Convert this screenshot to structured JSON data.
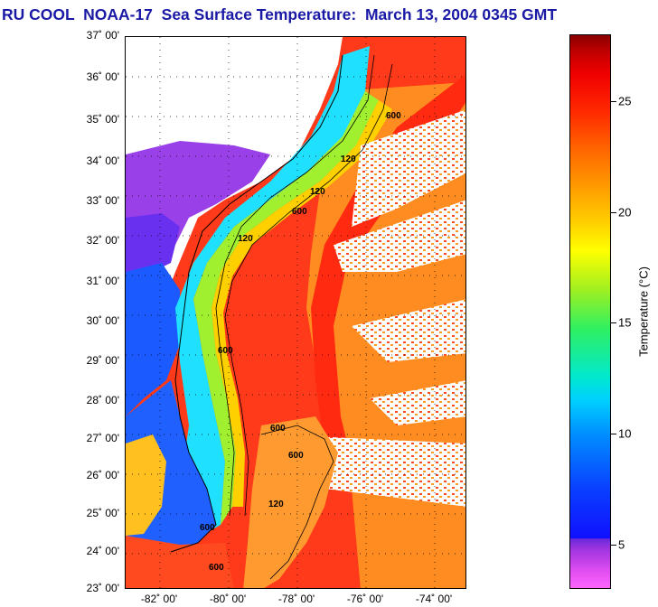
{
  "title": "RU COOL  NOAA-17  Sea Surface Temperature:  March 13, 2004 0345 GMT",
  "colorbar": {
    "label": "Temperature (°C)",
    "ticks": [
      "5",
      "10",
      "15",
      "20",
      "25"
    ],
    "tick_values": [
      5,
      10,
      15,
      20,
      25
    ],
    "range": [
      3,
      28
    ],
    "colors": {
      "min": "#ff66ff",
      "cold": "#1010ff",
      "mid": "#ffff00",
      "warm": "#ff2a00",
      "max": "#8a0000"
    }
  },
  "map": {
    "lat_labels": [
      "37˚ 00'",
      "36˚ 00'",
      "35˚ 00'",
      "34˚ 00'",
      "33˚ 00'",
      "32˚ 00'",
      "31˚ 00'",
      "30˚ 00'",
      "29˚ 00'",
      "28˚ 00'",
      "27˚ 00'",
      "26˚ 00'",
      "25˚ 00'",
      "24˚ 00'",
      "23˚ 00'"
    ],
    "lon_labels": [
      "-82˚ 00'",
      "-80˚ 00'",
      "-78˚ 00'",
      "-76˚ 00'",
      "-74˚ 00'"
    ],
    "lat_range": [
      23,
      37
    ],
    "lon_range": [
      -83,
      -73
    ],
    "isobath_labels": [
      "600",
      "120",
      "120",
      "600",
      "120",
      "600",
      "600",
      "600",
      "120",
      "600",
      "600"
    ],
    "colors": {
      "land": "#ffffff",
      "gulf_stream": "#ff2a14",
      "shelf": "#20e0ff",
      "cloud": "#ffffff",
      "coast": "#000000"
    }
  }
}
